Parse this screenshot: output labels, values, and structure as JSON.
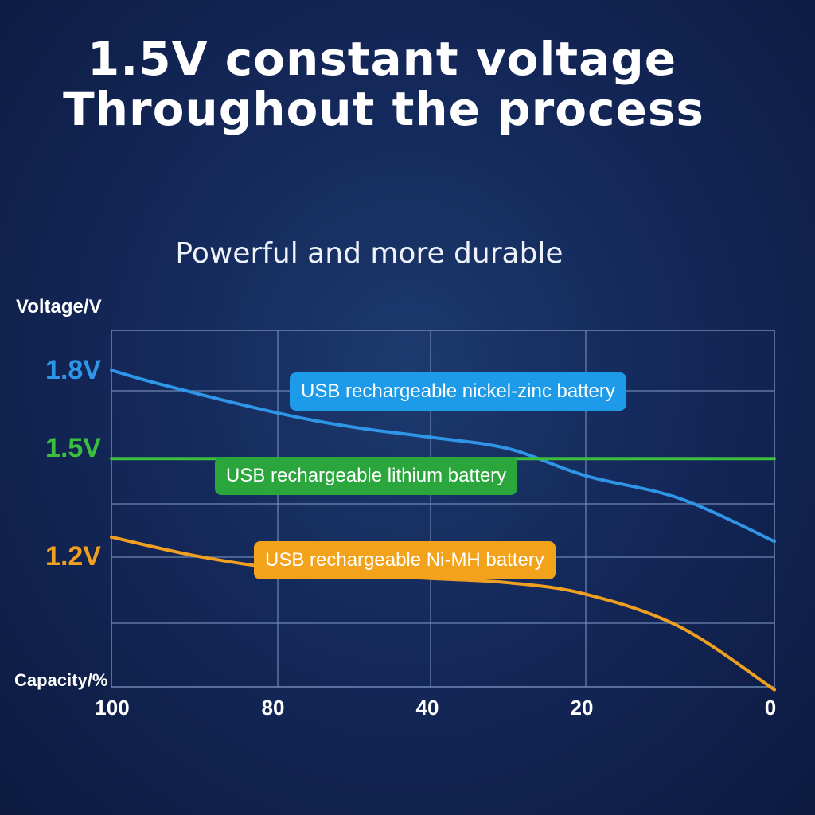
{
  "title_line1": "1.5V constant voltage",
  "title_line2": "Throughout the process",
  "subtitle": "Powerful and more durable",
  "chart_data": {
    "type": "line",
    "ylabel": "Voltage/V",
    "xlabel": "Capacity/%",
    "x_ticks": [
      "100",
      "80",
      "40",
      "20",
      "0"
    ],
    "y_ticks": [
      {
        "label": "1.8V",
        "value": 1.8,
        "color": "#2f95e6"
      },
      {
        "label": "1.5V",
        "value": 1.5,
        "color": "#3cbf3f"
      },
      {
        "label": "1.2V",
        "value": 1.2,
        "color": "#f0a020"
      }
    ],
    "ylim": [
      0.7,
      1.95
    ],
    "grid": true,
    "series": [
      {
        "name": "USB rechargeable nickel-zinc battery",
        "color": "#2f95e6",
        "tag_color": "#1e9be8",
        "points": [
          [
            0,
            1.81
          ],
          [
            0.3,
            1.76
          ],
          [
            1,
            1.66
          ],
          [
            1.5,
            1.61
          ],
          [
            2,
            1.575
          ],
          [
            2.5,
            1.535
          ],
          [
            3,
            1.44
          ],
          [
            3.5,
            1.36
          ],
          [
            4,
            1.21
          ]
        ]
      },
      {
        "name": "USB rechargeable lithium battery",
        "color": "#3cbf3f",
        "tag_color": "#2aa63c",
        "points": [
          [
            0,
            1.5
          ],
          [
            4,
            1.5
          ]
        ]
      },
      {
        "name": "USB rechargeable Ni-MH battery",
        "color": "#f0a020",
        "tag_color": "#f3a21c",
        "points": [
          [
            0,
            1.225
          ],
          [
            0.5,
            1.16
          ],
          [
            1,
            1.115
          ],
          [
            1.5,
            1.095
          ],
          [
            2,
            1.08
          ],
          [
            2.5,
            1.065
          ],
          [
            3,
            1.025
          ],
          [
            3.5,
            0.91
          ],
          [
            4,
            0.69
          ]
        ]
      }
    ]
  }
}
